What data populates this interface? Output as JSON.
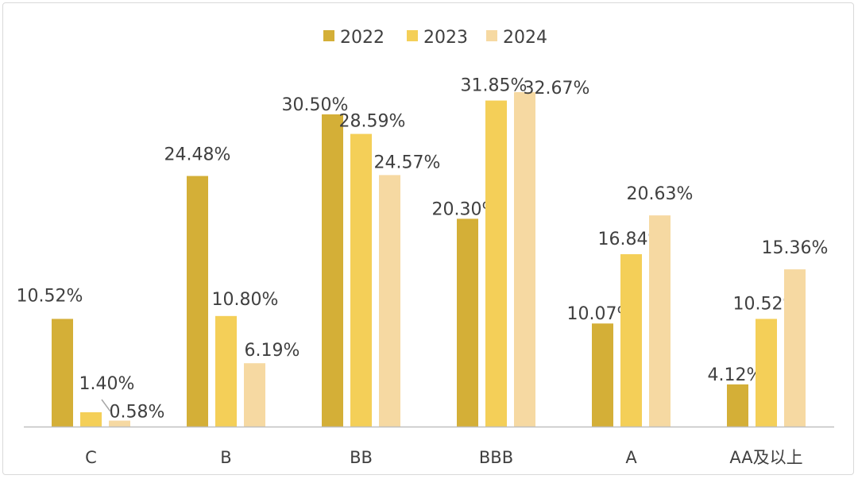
{
  "chart_data": {
    "type": "bar",
    "categories": [
      "C",
      "B",
      "BB",
      "BBB",
      "A",
      "AA及以上"
    ],
    "series": [
      {
        "name": "2022",
        "color": "#D4AF37",
        "values": [
          10.52,
          24.48,
          30.5,
          20.3,
          10.07,
          4.12
        ],
        "labels": [
          "10.52%",
          "24.48%",
          "30.50%",
          "20.30%",
          "10.07%",
          "4.12%"
        ]
      },
      {
        "name": "2023",
        "color": "#F4CF58",
        "values": [
          1.4,
          10.8,
          28.59,
          31.85,
          16.84,
          10.52
        ],
        "labels": [
          "1.40%",
          "10.80%",
          "28.59%",
          "31.85%",
          "16.84%",
          "10.52%"
        ]
      },
      {
        "name": "2024",
        "color": "#F6D9A2",
        "values": [
          0.58,
          6.19,
          24.57,
          32.67,
          20.63,
          15.36
        ],
        "labels": [
          "0.58%",
          "6.19%",
          "24.57%",
          "32.67%",
          "20.63%",
          "15.36%"
        ]
      }
    ],
    "ylim": [
      0,
      34
    ],
    "grid": false,
    "legend_position": "top",
    "axis_color": "#bfbfbf"
  }
}
